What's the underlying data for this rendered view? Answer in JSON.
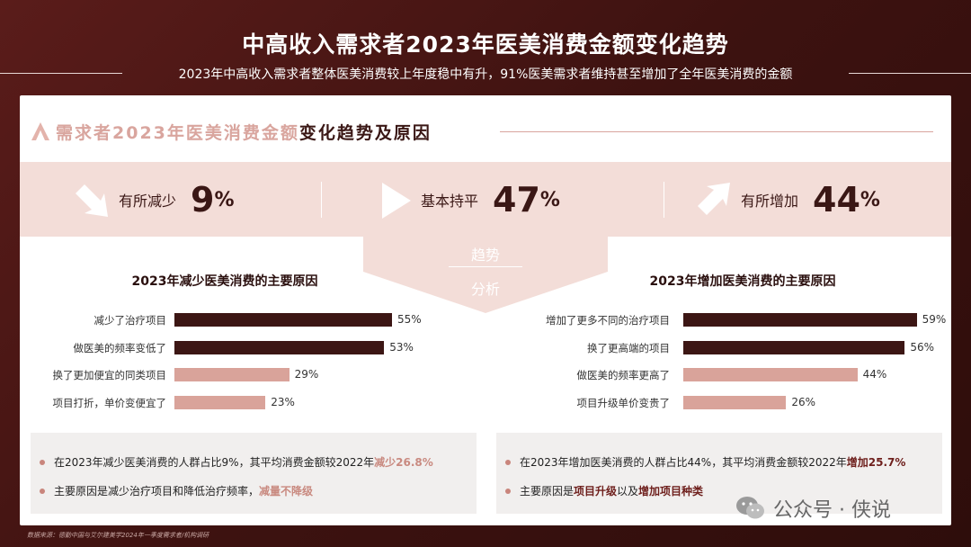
{
  "header": {
    "title": "中高收入需求者2023年医美消费金额变化趋势",
    "subtitle": "2023年中高收入需求者整体医美消费较上年度稳中有升，91%医美需求者维持甚至增加了全年医美消费的金额"
  },
  "section": {
    "heading_light": "需求者2023年医美消费金额",
    "heading_dark": "变化趋势及原因"
  },
  "stats": [
    {
      "label": "有所减少",
      "value": "9",
      "unit": "%"
    },
    {
      "label": "基本持平",
      "value": "47",
      "unit": "%"
    },
    {
      "label": "有所增加",
      "value": "44",
      "unit": "%"
    }
  ],
  "trend": {
    "line1": "趋势",
    "line2": "分析"
  },
  "colors": {
    "dark": "#3c1614",
    "light": "#d9a39a",
    "accent": "#c98a80"
  },
  "chart_data": [
    {
      "type": "bar",
      "title": "2023年减少医美消费的主要原因",
      "categories": [
        "减少了治疗项目",
        "做医美的频率变低了",
        "换了更加便宜的同类项目",
        "项目打折，单价变便宜了"
      ],
      "values": [
        55,
        53,
        29,
        23
      ],
      "value_labels": [
        "55%",
        "53%",
        "29%",
        "23%"
      ],
      "shades": [
        "dark",
        "dark",
        "light",
        "light"
      ]
    },
    {
      "type": "bar",
      "title": "2023年增加医美消费的主要原因",
      "categories": [
        "增加了更多不同的治疗项目",
        "换了更高端的项目",
        "做医美的频率更高了",
        "项目升级单价变贵了"
      ],
      "values": [
        59,
        56,
        44,
        26
      ],
      "value_labels": [
        "59%",
        "56%",
        "44%",
        "26%"
      ],
      "shades": [
        "dark",
        "dark",
        "light",
        "light"
      ]
    }
  ],
  "notes_left": {
    "n1_a": "在2023年减少医美消费的人群占比9%，其平均消费金额较2022年",
    "n1_b": "减少26.8%",
    "n2_a": "主要原因是减少治疗项目和降低治疗频率，",
    "n2_b": "减量不降级"
  },
  "notes_right": {
    "n1_a": "在2023年增加医美消费的人群占比44%，其平均消费金额较2022年",
    "n1_b": "增加25.7%",
    "n2_a": "主要原因是",
    "n2_b": "项目升级",
    "n2_c": "以及",
    "n2_d": "增加项目种类"
  },
  "source": "数据来源：德勤中国与艾尔建美学2024年一季度需求者/机构调研",
  "watermark": "公众号 · 侠说"
}
